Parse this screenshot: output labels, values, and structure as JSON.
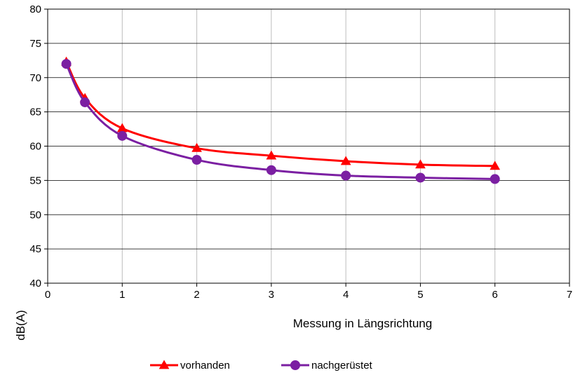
{
  "chart_data": {
    "type": "line",
    "xlabel": "Messung in Längsrichtung",
    "ylabel": "dB(A)",
    "xlim": [
      0,
      7
    ],
    "ylim": [
      40,
      80
    ],
    "xticks": [
      0,
      1,
      2,
      3,
      4,
      5,
      6,
      7
    ],
    "yticks": [
      40,
      45,
      50,
      55,
      60,
      65,
      70,
      75,
      80
    ],
    "grid": true,
    "legend_position": "bottom",
    "series": [
      {
        "name": "vorhanden",
        "color": "#ff0000",
        "marker": "triangle",
        "x": [
          0.25,
          0.5,
          1,
          2,
          3,
          4,
          5,
          6
        ],
        "y": [
          72.3,
          67.0,
          62.6,
          59.7,
          58.6,
          57.8,
          57.3,
          57.1
        ]
      },
      {
        "name": "nachgerüstet",
        "color": "#7b1fa2",
        "marker": "circle",
        "x": [
          0.25,
          0.5,
          1,
          2,
          3,
          4,
          5,
          6
        ],
        "y": [
          72.0,
          66.4,
          61.5,
          58.0,
          56.5,
          55.7,
          55.4,
          55.2
        ]
      }
    ]
  }
}
